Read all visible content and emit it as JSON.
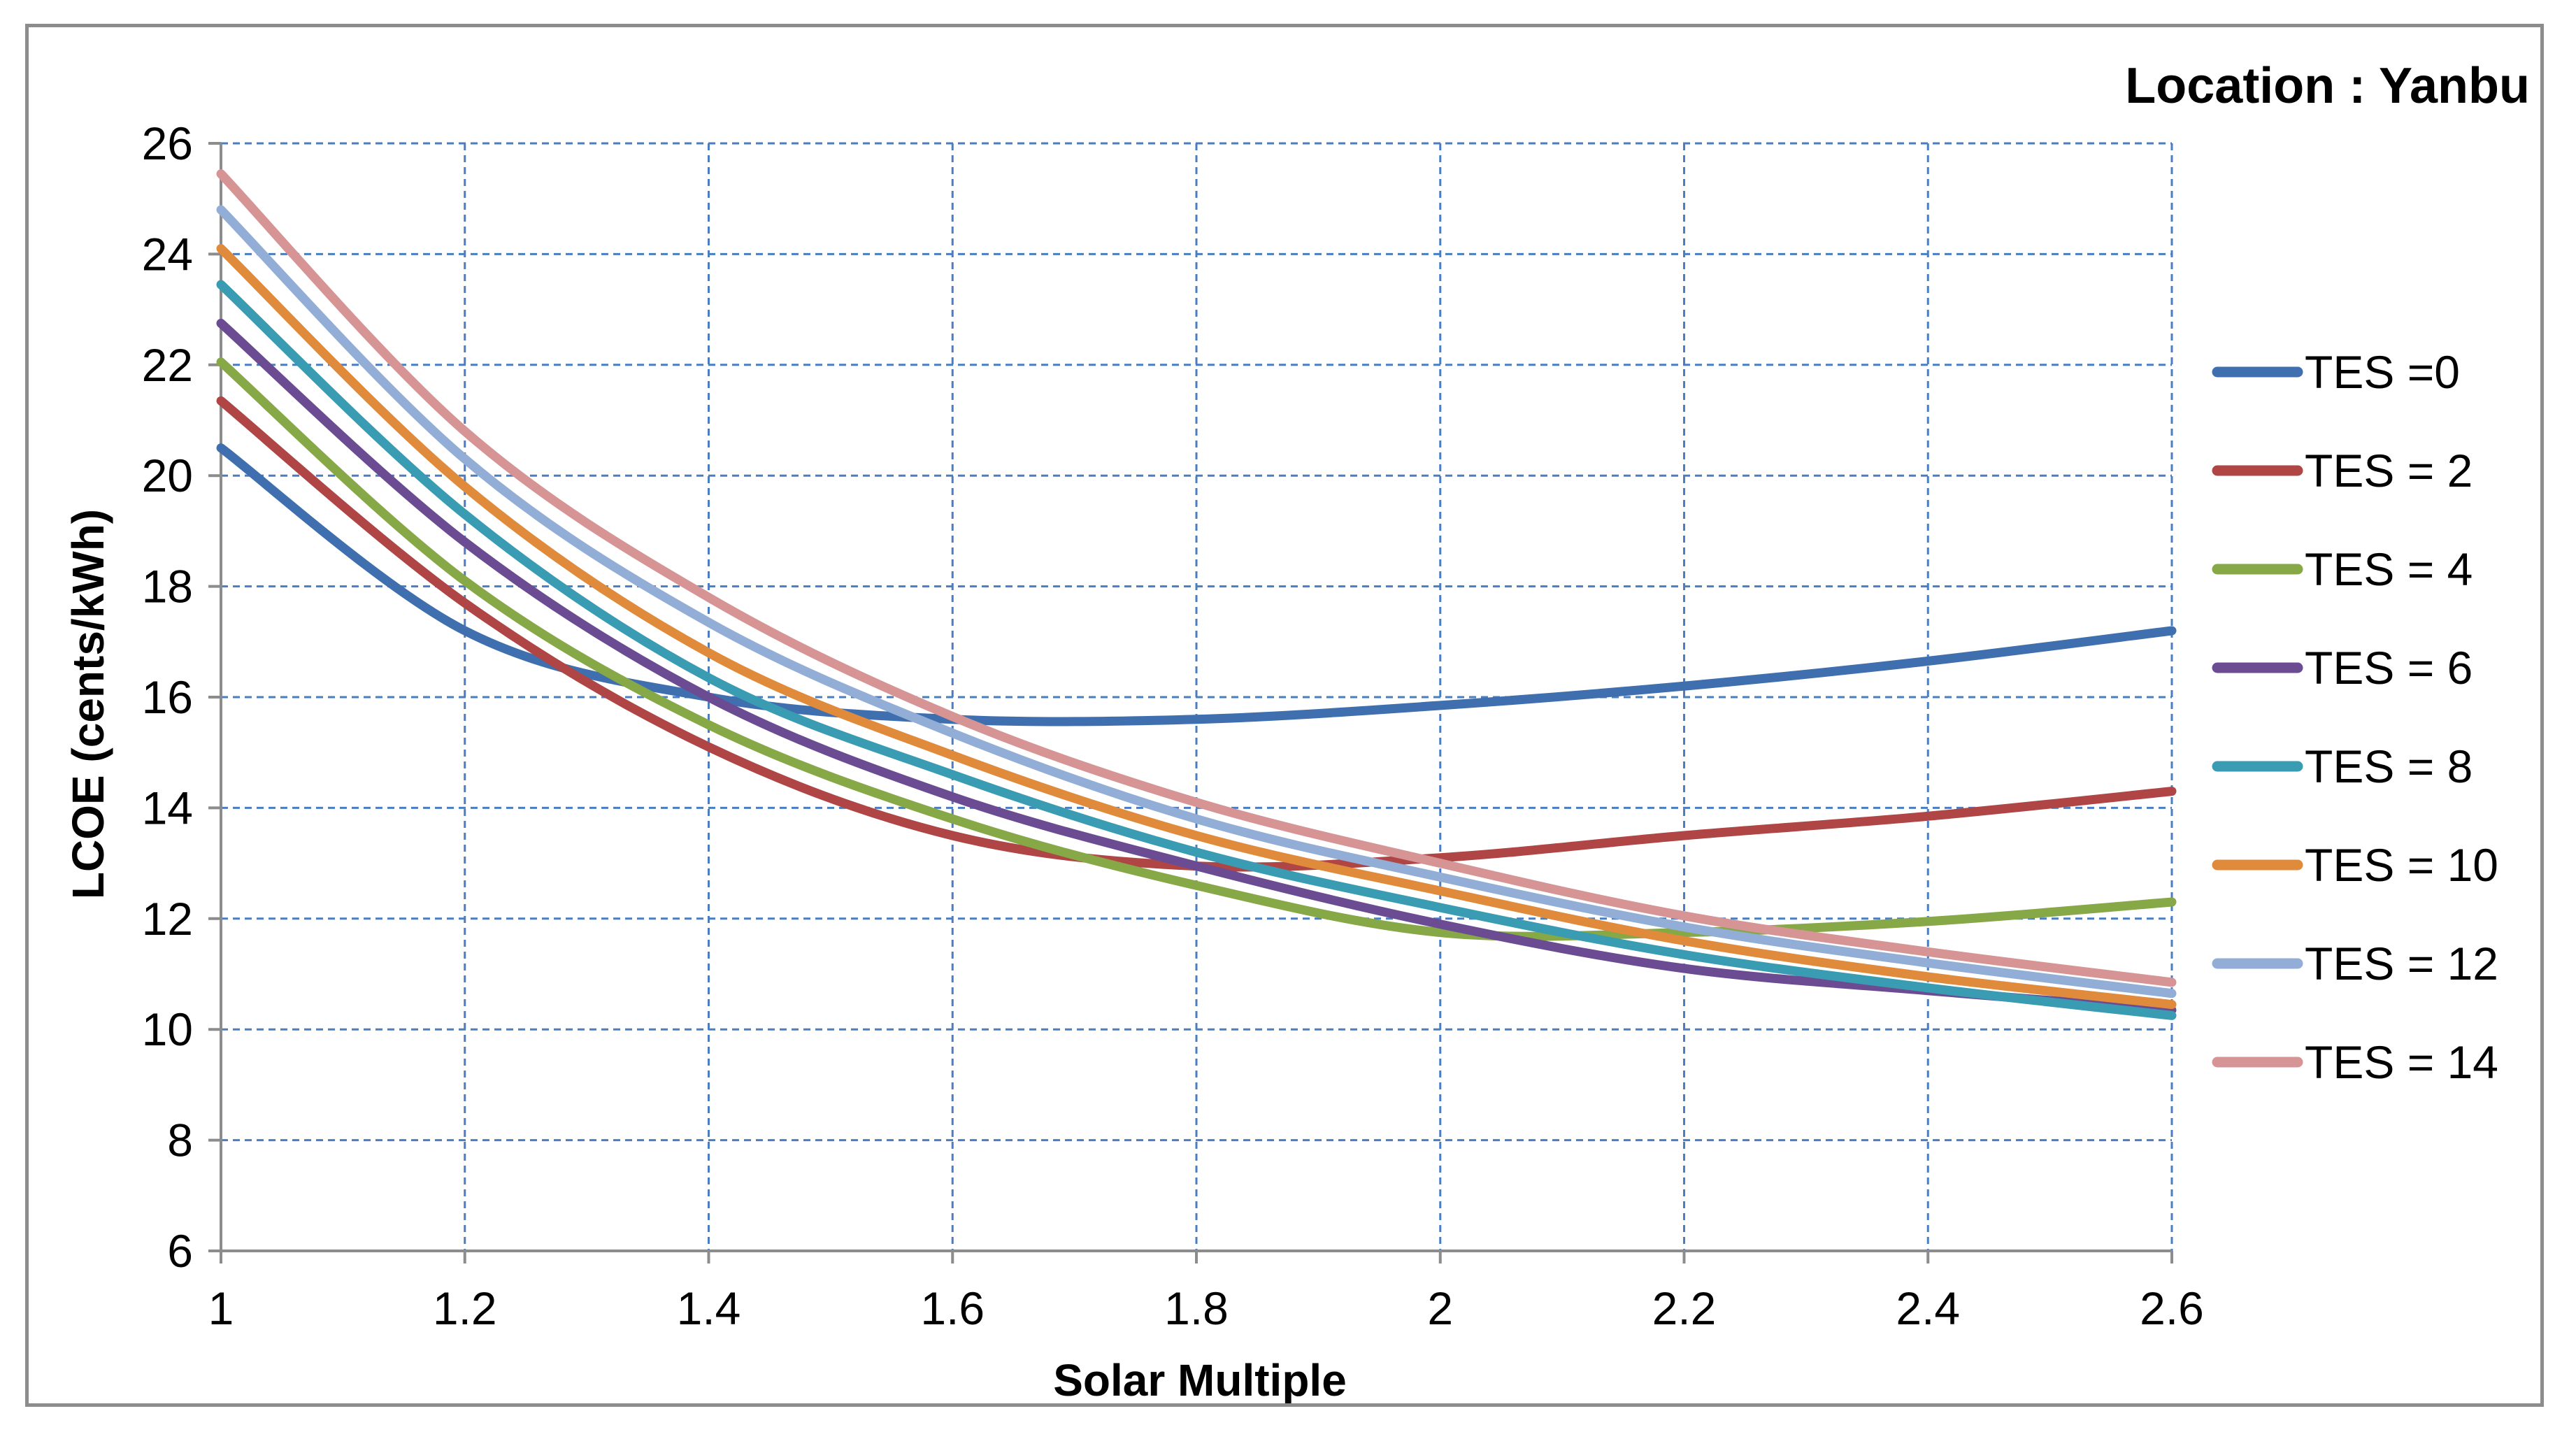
{
  "chart_data": {
    "type": "line",
    "title": "Location : Yanbu",
    "xlabel": "Solar Multiple",
    "ylabel": "LCOE (cents/kWh)",
    "xlim": [
      1,
      2.6
    ],
    "ylim": [
      6,
      26
    ],
    "x_ticks": [
      "1",
      "1.2",
      "1.4",
      "1.6",
      "1.8",
      "2",
      "2.2",
      "2.4",
      "2.6"
    ],
    "y_ticks": [
      "6",
      "8",
      "10",
      "12",
      "14",
      "16",
      "18",
      "20",
      "22",
      "24",
      "26"
    ],
    "grid": true,
    "legend_position": "right",
    "x": [
      1.0,
      1.2,
      1.4,
      1.6,
      1.8,
      2.0,
      2.2,
      2.4,
      2.6
    ],
    "series": [
      {
        "name": "TES =0",
        "color": "#3f6fae",
        "values": [
          20.5,
          17.2,
          16.0,
          15.6,
          15.6,
          15.85,
          16.2,
          16.65,
          17.2
        ]
      },
      {
        "name": "TES = 2",
        "color": "#b04545",
        "values": [
          21.35,
          17.7,
          15.1,
          13.5,
          12.95,
          13.1,
          13.5,
          13.85,
          14.3
        ]
      },
      {
        "name": "TES = 4",
        "color": "#86a846",
        "values": [
          22.05,
          18.1,
          15.5,
          13.8,
          12.6,
          11.75,
          11.75,
          11.95,
          12.3
        ]
      },
      {
        "name": "TES = 6",
        "color": "#6b4c93",
        "values": [
          22.75,
          18.8,
          16.0,
          14.2,
          12.95,
          11.9,
          11.1,
          10.7,
          10.35
        ]
      },
      {
        "name": "TES = 8",
        "color": "#3a9cb3",
        "values": [
          23.45,
          19.3,
          16.35,
          14.6,
          13.2,
          12.2,
          11.35,
          10.75,
          10.25
        ]
      },
      {
        "name": "TES = 10",
        "color": "#e08a3c",
        "values": [
          24.1,
          19.8,
          16.8,
          14.95,
          13.5,
          12.5,
          11.6,
          10.95,
          10.45
        ]
      },
      {
        "name": "TES = 12",
        "color": "#92aed6",
        "values": [
          24.8,
          20.3,
          17.35,
          15.35,
          13.8,
          12.75,
          11.85,
          11.2,
          10.65
        ]
      },
      {
        "name": "TES = 14",
        "color": "#d69494",
        "values": [
          25.45,
          20.8,
          17.8,
          15.65,
          14.1,
          13.0,
          12.05,
          11.4,
          10.85
        ]
      }
    ]
  }
}
